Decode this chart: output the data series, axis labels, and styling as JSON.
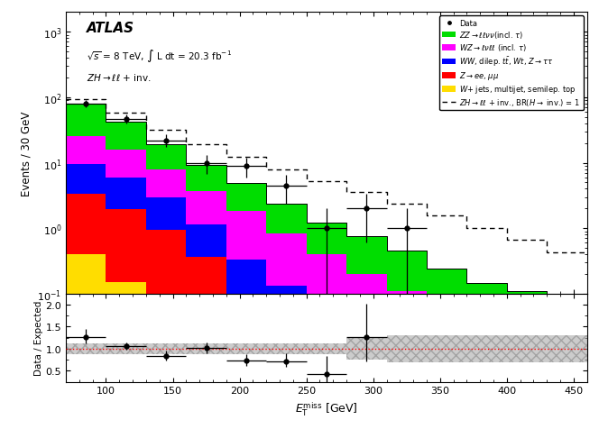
{
  "bin_edges": [
    70,
    100,
    130,
    160,
    190,
    220,
    250,
    280,
    310,
    340,
    370,
    400,
    430,
    460
  ],
  "stack_ZZ": [
    55.0,
    27.0,
    11.0,
    5.5,
    3.0,
    1.5,
    0.8,
    0.55,
    0.35,
    0.2,
    0.13,
    0.1,
    0.08
  ],
  "stack_WZ": [
    16.0,
    10.0,
    5.0,
    2.5,
    1.5,
    0.7,
    0.35,
    0.18,
    0.1,
    0.04,
    0.015,
    0.008,
    0.004
  ],
  "stack_WW": [
    6.0,
    4.0,
    2.0,
    0.8,
    0.25,
    0.1,
    0.04,
    0.015,
    0.007,
    0.003,
    0.001,
    0.0005,
    0.0002
  ],
  "stack_Z": [
    3.0,
    1.8,
    0.9,
    0.35,
    0.08,
    0.03,
    0.008,
    0.003,
    0.001,
    0.0004,
    0.0002,
    0.0001,
    5e-05
  ],
  "stack_W": [
    0.4,
    0.15,
    0.04,
    0.01,
    0.003,
    0.001,
    0.0004,
    0.0001,
    5e-05,
    2e-05,
    1e-05,
    5e-06,
    2e-06
  ],
  "signal": [
    12.0,
    16.0,
    13.0,
    10.0,
    7.5,
    5.5,
    4.0,
    2.8,
    1.9,
    1.3,
    0.85,
    0.55,
    0.35
  ],
  "data_x": [
    85,
    115,
    145,
    175,
    205,
    235,
    265,
    295,
    325,
    355,
    385,
    415,
    445
  ],
  "data_y": [
    80,
    47,
    22,
    10,
    9.0,
    4.5,
    1.0,
    2.0,
    1.0,
    0.0,
    0.0,
    0.0,
    0.0
  ],
  "data_yerr": [
    9.5,
    7.0,
    4.8,
    3.2,
    3.0,
    2.1,
    1.0,
    1.4,
    1.0,
    0.0,
    0.0,
    0.0,
    0.0
  ],
  "ratio_x": [
    85,
    115,
    145,
    175,
    205,
    235,
    265,
    295
  ],
  "ratio_y": [
    1.27,
    1.05,
    0.84,
    1.01,
    0.73,
    0.72,
    0.43,
    1.27
  ],
  "ratio_xerr": [
    15,
    15,
    15,
    15,
    15,
    15,
    15,
    15
  ],
  "ratio_yerr_lo": [
    0.14,
    0.08,
    0.1,
    0.11,
    0.12,
    0.14,
    0.25,
    0.55
  ],
  "ratio_yerr_hi": [
    0.17,
    0.09,
    0.12,
    0.13,
    0.15,
    0.18,
    0.4,
    0.75
  ],
  "ratio_band_lo": [
    0.88,
    0.88,
    0.88,
    0.88,
    0.88,
    0.88,
    0.88,
    0.75,
    0.7,
    0.7,
    0.7,
    0.7,
    0.7
  ],
  "ratio_band_hi": [
    1.12,
    1.12,
    1.12,
    1.12,
    1.12,
    1.12,
    1.12,
    1.25,
    1.3,
    1.3,
    1.3,
    1.3,
    1.3
  ],
  "color_ZZ": "#00dd00",
  "color_WZ": "#ff00ff",
  "color_WW": "#0000ff",
  "color_Z": "#ff0000",
  "color_W": "#ffdd00",
  "xlim": [
    70,
    460
  ],
  "ylim_main": [
    0.1,
    2000
  ],
  "ylim_ratio": [
    0.25,
    2.25
  ],
  "xlabel": "$E_{\\mathrm{T}}^{\\mathrm{miss}}$ [GeV]",
  "ylabel_main": "Events / 30 GeV",
  "ylabel_ratio": "Data / Expected",
  "title_atlas": "ATLAS",
  "subtitle1": "$\\sqrt{s}$ = 8 TeV, $\\int$ L dt = 20.3 fb$^{-1}$",
  "subtitle2": "$ZH \\rightarrow \\ell\\ell$ + inv.",
  "legend_labels": [
    "Data",
    "$ZZ \\rightarrow \\ell\\ell\\nu\\nu$(incl. $\\tau$)",
    "$WZ \\rightarrow \\ell\\nu\\ell\\ell$ (incl. $\\tau$)",
    "$WW$, dilep. $t\\bar{t}$, $Wt$, $Z\\rightarrow\\tau\\tau$",
    "$Z\\rightarrow ee$, $\\mu\\mu$",
    "$W$+ jets, multijet, semilep. top",
    "$ZH \\rightarrow \\ell\\ell$ + inv., BR($H\\rightarrow$ inv.) = 1"
  ]
}
